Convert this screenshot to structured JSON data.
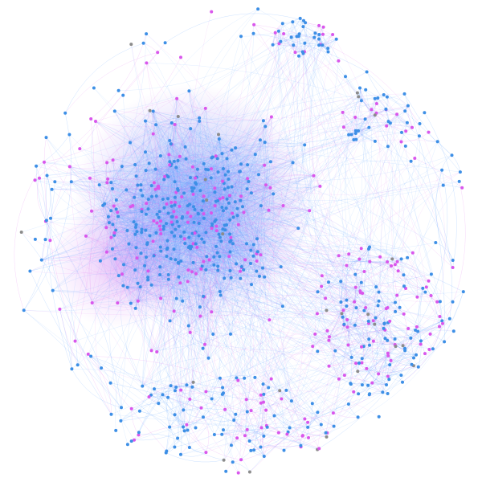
{
  "figure": {
    "type": "network-graph",
    "layout": "force-directed",
    "edges_curved": true,
    "background_color": "#ffffff"
  },
  "chart_data": {
    "type": "network",
    "node_categories": [
      {
        "color": "#3d8fe6",
        "share": 0.62
      },
      {
        "color": "#d957ec",
        "share": 0.35
      },
      {
        "color": "#8c8c8c",
        "share": 0.03
      }
    ],
    "edge_colors": [
      "#5aa0ff",
      "#e07cf0"
    ],
    "communities": [
      {
        "label_visible": false,
        "node_count": 420,
        "edge_density": "very-high",
        "dominant_color": "#3d8fe6",
        "position": "center-left"
      },
      {
        "label_visible": false,
        "node_count": 35,
        "edge_density": "high",
        "dominant_color": "#3d8fe6",
        "position": "top"
      },
      {
        "label_visible": false,
        "node_count": 35,
        "edge_density": "high",
        "dominant_color": "#3d8fe6",
        "position": "upper-right"
      },
      {
        "label_visible": false,
        "node_count": 140,
        "edge_density": "low",
        "dominant_color": "#d957ec",
        "position": "lower-right"
      },
      {
        "label_visible": false,
        "node_count": 90,
        "edge_density": "low",
        "dominant_color": "#3d8fe6",
        "position": "bottom"
      },
      {
        "label_visible": false,
        "node_count": 120,
        "edge_density": "very-low",
        "dominant_color": "#3d8fe6",
        "position": "periphery"
      }
    ],
    "text_labels_visible": false,
    "legend": "none"
  }
}
